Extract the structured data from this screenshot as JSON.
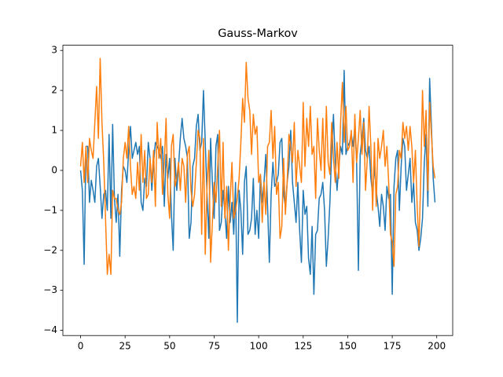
{
  "chart_data": {
    "type": "line",
    "title": "Gauss-Markov",
    "x": [
      0,
      1,
      2,
      3,
      4,
      5,
      6,
      7,
      8,
      9,
      10,
      11,
      12,
      13,
      14,
      15,
      16,
      17,
      18,
      19,
      20,
      21,
      22,
      23,
      24,
      25,
      26,
      27,
      28,
      29,
      30,
      31,
      32,
      33,
      34,
      35,
      36,
      37,
      38,
      39,
      40,
      41,
      42,
      43,
      44,
      45,
      46,
      47,
      48,
      49,
      50,
      51,
      52,
      53,
      54,
      55,
      56,
      57,
      58,
      59,
      60,
      61,
      62,
      63,
      64,
      65,
      66,
      67,
      68,
      69,
      70,
      71,
      72,
      73,
      74,
      75,
      76,
      77,
      78,
      79,
      80,
      81,
      82,
      83,
      84,
      85,
      86,
      87,
      88,
      89,
      90,
      91,
      92,
      93,
      94,
      95,
      96,
      97,
      98,
      99,
      100,
      101,
      102,
      103,
      104,
      105,
      106,
      107,
      108,
      109,
      110,
      111,
      112,
      113,
      114,
      115,
      116,
      117,
      118,
      119,
      120,
      121,
      122,
      123,
      124,
      125,
      126,
      127,
      128,
      129,
      130,
      131,
      132,
      133,
      134,
      135,
      136,
      137,
      138,
      139,
      140,
      141,
      142,
      143,
      144,
      145,
      146,
      147,
      148,
      149,
      150,
      151,
      152,
      153,
      154,
      155,
      156,
      157,
      158,
      159,
      160,
      161,
      162,
      163,
      164,
      165,
      166,
      167,
      168,
      169,
      170,
      171,
      172,
      173,
      174,
      175,
      176,
      177,
      178,
      179,
      180,
      181,
      182,
      183,
      184,
      185,
      186,
      187,
      188,
      189,
      190,
      191,
      192,
      193,
      194,
      195,
      196,
      197,
      198,
      199
    ],
    "series": [
      {
        "color": "#1f77b4",
        "values": [
          0,
          -0.5,
          -2.35,
          0.6,
          0.6,
          -0.8,
          -0.25,
          -0.5,
          -0.8,
          0.1,
          0.3,
          -0.4,
          -1.2,
          -0.6,
          -0.5,
          -1.0,
          0.9,
          -1.2,
          1.15,
          -0.7,
          -1.3,
          -0.6,
          -2.15,
          -0.5,
          0.1,
          0.0,
          -0.3,
          0.5,
          1.1,
          0.3,
          0.5,
          0.7,
          0.4,
          0.6,
          -0.8,
          -1.0,
          -0.2,
          -0.4,
          0.7,
          0.3,
          -0.5,
          0.2,
          0.7,
          0.6,
          0.5,
          0.3,
          0.6,
          -0.9,
          0.4,
          -0.2,
          0.3,
          -1.1,
          -2.0,
          0.3,
          -0.5,
          0.1,
          0.8,
          1.3,
          0.8,
          0.6,
          0.3,
          -1.7,
          -1.3,
          0.1,
          0.3,
          1.1,
          1.4,
          0.5,
          0.7,
          2.0,
          0.7,
          -0.6,
          -1.7,
          0.8,
          -0.3,
          -1.2,
          0.6,
          0.9,
          -1.5,
          -1.3,
          -0.5,
          -1.0,
          -1.7,
          -0.4,
          -1.3,
          -0.8,
          -1.6,
          -0.3,
          -3.8,
          -0.5,
          -1.0,
          -2.1,
          -0.3,
          0.1,
          -1.6,
          -1.5,
          -1.2,
          -0.2,
          -1.6,
          -1.0,
          -1.7,
          -0.1,
          -0.8,
          -0.3,
          0.4,
          -0.9,
          -2.3,
          -0.6,
          0.2,
          -0.4,
          -0.3,
          -0.1,
          0.7,
          0.8,
          -0.6,
          -0.9,
          -0.3,
          0.1,
          1.0,
          -0.3,
          -0.8,
          -1.3,
          -0.3,
          -1.5,
          -2.3,
          -0.5,
          -1.1,
          -0.9,
          -2.2,
          -2.6,
          -1.4,
          -3.1,
          -1.6,
          -1.5,
          -0.7,
          -0.6,
          -0.3,
          -1.0,
          -2.4,
          -1.7,
          -0.8,
          0.5,
          1.4,
          0.2,
          -0.5,
          0.1,
          0.6,
          0.4,
          2.5,
          0.4,
          0.6,
          0.7,
          0.9,
          0.6,
          1.1,
          0.2,
          -2.5,
          0.4,
          0.8,
          1.3,
          0.5,
          0.3,
          0.6,
          -0.2,
          -0.6,
          0.1,
          -0.5,
          -0.9,
          -1.4,
          -0.6,
          -0.9,
          -1.5,
          -0.4,
          -0.7,
          -0.6,
          -3.1,
          -0.4,
          0.3,
          0.5,
          -1.0,
          0.1,
          0.8,
          0.6,
          -0.5,
          -0.1,
          0.3,
          -0.8,
          -0.3,
          -1.3,
          -1.5,
          -2.0,
          -1.7,
          -1.2,
          0.2,
          0.9,
          -0.9,
          2.3,
          1.1,
          -0.2,
          -0.8
        ]
      },
      {
        "color": "#ff7f0e",
        "values": [
          0.1,
          0.7,
          -0.3,
          0.6,
          -0.3,
          0.8,
          0.5,
          0.3,
          1.2,
          2.1,
          0.8,
          2.8,
          1.2,
          0.2,
          -1.2,
          -2.6,
          -2.1,
          -2.6,
          -0.5,
          -0.7,
          -0.7,
          -1.0,
          -1.1,
          -0.8,
          0.3,
          0.7,
          0.3,
          1.1,
          0.1,
          -0.6,
          -0.4,
          -0.7,
          0.2,
          -0.5,
          0.9,
          -0.3,
          0.5,
          -0.7,
          -0.6,
          0.3,
          -0.3,
          0.5,
          -0.9,
          1.2,
          0.3,
          0.8,
          -0.6,
          0.2,
          1.3,
          -0.6,
          -1.2,
          0.6,
          0.9,
          -0.4,
          -0.2,
          0.2,
          -0.5,
          0.3,
          0.1,
          -0.8,
          0.4,
          0.6,
          -0.5,
          -0.9,
          -0.6,
          0.2,
          1.0,
          0.8,
          -1.6,
          0.8,
          -2.1,
          -0.4,
          0.5,
          -2.3,
          -1.3,
          -0.3,
          -0.8,
          0.1,
          1.0,
          -0.9,
          0.7,
          -1.2,
          -0.4,
          -2.0,
          -0.7,
          0.2,
          -1.2,
          -1.0,
          -0.7,
          -0.2,
          0.7,
          1.8,
          1.2,
          2.7,
          1.8,
          1.5,
          0.4,
          1.4,
          0.9,
          1.1,
          -0.3,
          -0.1,
          -1.3,
          -0.3,
          -1.1,
          0.6,
          0.7,
          1.5,
          0.3,
          1.1,
          -0.6,
          -0.3,
          -1.7,
          -1.4,
          0.3,
          -1.1,
          -0.3,
          0.9,
          0.6,
          0.2,
          1.2,
          -0.4,
          0.5,
          0.1,
          -0.3,
          1.7,
          0.1,
          1.3,
          0.6,
          1.6,
          0.4,
          0.6,
          -0.7,
          1.3,
          0.5,
          0.0,
          1.3,
          -0.2,
          1.6,
          0.2,
          -0.1,
          1.2,
          0.3,
          -0.3,
          0.7,
          -0.2,
          1.2,
          2.2,
          0.7,
          1.6,
          0.5,
          0.6,
          1.0,
          -0.3,
          1.4,
          0.2,
          0.8,
          1.5,
          0.4,
          1.2,
          -0.5,
          0.3,
          1.6,
          0.6,
          -1.0,
          0.7,
          -0.9,
          0.8,
          0.3,
          0.6,
          1.0,
          0.1,
          0.6,
          -0.3,
          -1.6,
          -1.8,
          -2.4,
          -0.6,
          -0.4,
          0.5,
          0.3,
          1.2,
          0.8,
          1.1,
          0.5,
          1.1,
          0.6,
          -0.3,
          0.5,
          -0.9,
          -1.9,
          -0.2,
          2.0,
          0.6,
          1.5,
          -0.5,
          1.7,
          0.9,
          0.1,
          -0.2
        ]
      }
    ],
    "xlim": [
      -9.95,
      208.95
    ],
    "ylim": [
      -4.13,
      3.13
    ],
    "xticks": [
      0,
      25,
      50,
      75,
      100,
      125,
      150,
      175,
      200
    ],
    "yticks": [
      {
        "value": -4,
        "label": "−4"
      },
      {
        "value": -3,
        "label": "−3"
      },
      {
        "value": -2,
        "label": "−2"
      },
      {
        "value": -1,
        "label": "−1"
      },
      0,
      1,
      2,
      3
    ]
  }
}
